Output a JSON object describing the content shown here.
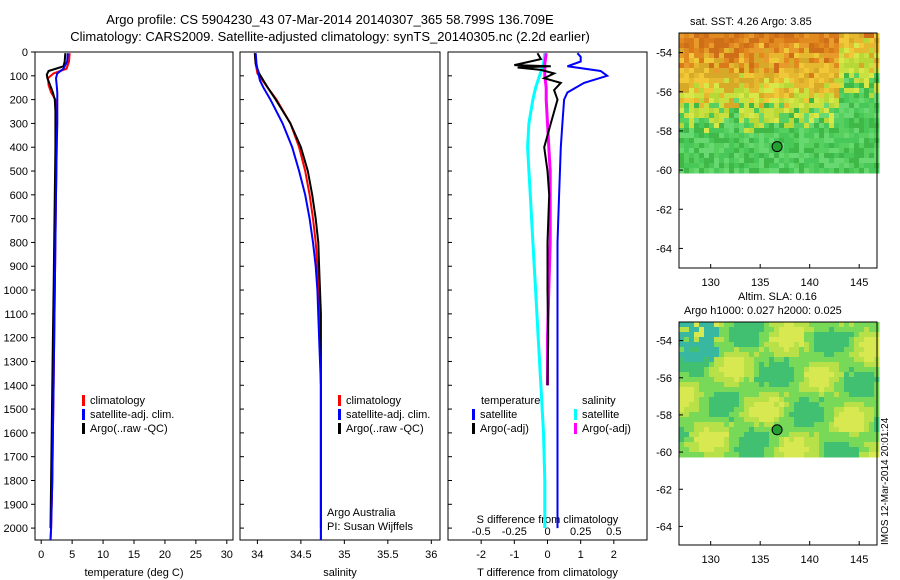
{
  "title_line1": "Argo profile: CS 5904230_43 07-Mar-2014 20140307_365 58.799S 136.709E",
  "title_line2": "Climatology: CARS2009. Satellite-adjusted climatology: synTS_20140305.nc (2.2d earlier)",
  "map1_title": "sat. SST: 4.26 Argo: 3.85",
  "map2_title_line1": "Altim. SLA: 0.16",
  "map2_title_line2": "Argo h1000: 0.027 h2000: 0.025",
  "side_label": "IMOS 12-Mar-2014 20:01:24",
  "chart_data": [
    {
      "type": "line",
      "panel": "temperature",
      "xlabel": "temperature (deg C)",
      "xlim": [
        -1,
        31
      ],
      "xticks": [
        0,
        5,
        10,
        15,
        20,
        25,
        30
      ],
      "ylim": [
        2050,
        0
      ],
      "yticks": [
        0,
        100,
        200,
        300,
        400,
        500,
        600,
        700,
        800,
        900,
        1000,
        1100,
        1200,
        1300,
        1400,
        1500,
        1600,
        1700,
        1800,
        1900,
        2000
      ],
      "legend": [
        "climatology",
        "satellite-adj. clim.",
        "Argo(..raw -QC)"
      ],
      "colors": {
        "climatology": "#ff0000",
        "satellite": "#0000ff",
        "argo": "#000000"
      },
      "series": [
        {
          "name": "climatology",
          "color": "#ff0000",
          "depth": [
            5,
            40,
            70,
            90,
            110,
            140,
            170,
            200,
            300,
            400,
            600,
            800,
            1000,
            1200,
            1400,
            1600,
            1800,
            2000,
            2050
          ],
          "values": [
            4.6,
            4.5,
            4.1,
            2.0,
            1.1,
            1.2,
            1.6,
            2.3,
            2.5,
            2.5,
            2.4,
            2.3,
            2.2,
            2.1,
            2.0,
            1.9,
            1.8,
            1.6,
            1.5
          ]
        },
        {
          "name": "satellite-adj. clim.",
          "color": "#0000ff",
          "depth": [
            5,
            40,
            70,
            90,
            110,
            140,
            170,
            200,
            300,
            400,
            600,
            800,
            1000,
            1200,
            1400,
            1600,
            1800,
            2000,
            2050
          ],
          "values": [
            4.3,
            4.2,
            3.6,
            2.6,
            2.4,
            2.5,
            2.6,
            2.6,
            2.6,
            2.5,
            2.4,
            2.3,
            2.2,
            2.1,
            2.0,
            1.9,
            1.8,
            1.6,
            1.5
          ]
        },
        {
          "name": "Argo(..raw -QC)",
          "color": "#000000",
          "depth": [
            5,
            40,
            60,
            80,
            95,
            110,
            130,
            150,
            170,
            200,
            250,
            300,
            400,
            600,
            800,
            1000,
            1200,
            1400,
            1600,
            1800,
            2000
          ],
          "values": [
            3.9,
            3.8,
            3.6,
            1.2,
            0.9,
            1.0,
            1.3,
            1.6,
            1.9,
            2.2,
            2.3,
            2.3,
            2.3,
            2.2,
            2.1,
            2.0,
            1.9,
            1.8,
            1.7,
            1.6,
            1.5
          ]
        }
      ]
    },
    {
      "type": "line",
      "panel": "salinity",
      "xlabel": "salinity",
      "xlim": [
        33.8,
        36.1
      ],
      "xticks": [
        34,
        34.5,
        35,
        35.5,
        36
      ],
      "ylim": [
        2050,
        0
      ],
      "legend": [
        "climatology",
        "satellite-adj. clim.",
        "Argo(..raw -QC)"
      ],
      "annotation": [
        "Argo Australia",
        "PI: Susan Wijffels"
      ],
      "series": [
        {
          "name": "climatology",
          "color": "#ff0000",
          "depth": [
            5,
            50,
            90,
            120,
            150,
            200,
            300,
            400,
            500,
            600,
            700,
            800,
            900,
            1000,
            1200,
            1400,
            1600,
            1800,
            2000,
            2050
          ],
          "values": [
            33.97,
            33.98,
            34.0,
            34.06,
            34.12,
            34.22,
            34.38,
            34.48,
            34.55,
            34.6,
            34.64,
            34.67,
            34.69,
            34.7,
            34.72,
            34.73,
            34.73,
            34.73,
            34.73,
            34.73
          ]
        },
        {
          "name": "satellite-adj. clim.",
          "color": "#0000ff",
          "depth": [
            5,
            50,
            90,
            120,
            150,
            200,
            300,
            400,
            500,
            600,
            700,
            800,
            900,
            1000,
            1200,
            1400,
            1600,
            1800,
            2000,
            2050
          ],
          "values": [
            33.98,
            33.99,
            34.01,
            34.03,
            34.07,
            34.15,
            34.29,
            34.4,
            34.48,
            34.55,
            34.6,
            34.64,
            34.67,
            34.69,
            34.71,
            34.73,
            34.73,
            34.73,
            34.73,
            34.73
          ]
        },
        {
          "name": "Argo(..raw -QC)",
          "color": "#000000",
          "depth": [
            5,
            50,
            90,
            120,
            150,
            200,
            300,
            400,
            500,
            600,
            700,
            800,
            900,
            1000,
            1100,
            1200,
            1400,
            1600,
            1800,
            2000
          ],
          "values": [
            33.97,
            33.98,
            34.02,
            34.07,
            34.12,
            34.21,
            34.38,
            34.5,
            34.58,
            34.63,
            34.67,
            34.7,
            34.71,
            34.72,
            34.73,
            34.73,
            34.73,
            34.73,
            34.73,
            34.73
          ]
        }
      ]
    },
    {
      "type": "line",
      "panel": "difference",
      "title_bottom": "S difference from climatology",
      "xlabel": "T difference from climatology",
      "xlim_T": [
        -3,
        3
      ],
      "xticks_T": [
        -2,
        -1,
        0,
        1,
        2
      ],
      "xticks_S": [
        -0.5,
        -0.25,
        0,
        0.25,
        0.5
      ],
      "ylim": [
        2050,
        0
      ],
      "legend_header": [
        "temperature",
        "salinity"
      ],
      "legend": [
        "satellite",
        "Argo(-adj)",
        "satellite",
        "Argo(-adj)"
      ],
      "series": [
        {
          "name": "temperature satellite",
          "color": "#0000ff",
          "depth": [
            5,
            20,
            40,
            60,
            80,
            100,
            130,
            170,
            200,
            300,
            400,
            600,
            800,
            1000,
            1400,
            1800,
            2000
          ],
          "values": [
            0.9,
            1.0,
            1.0,
            0.6,
            1.6,
            1.8,
            1.1,
            0.6,
            0.5,
            0.45,
            0.4,
            0.35,
            0.3,
            0.3,
            0.3,
            0.3,
            0.3
          ]
        },
        {
          "name": "temperature Argo(-adj)",
          "color": "#000000",
          "depth": [
            5,
            30,
            55,
            60,
            65,
            75,
            90,
            110,
            130,
            160,
            200,
            300,
            400,
            500,
            600,
            800,
            1000,
            1200,
            1400
          ],
          "values": [
            -0.3,
            -0.2,
            -1.0,
            0.1,
            -0.9,
            -0.2,
            0.2,
            -0.1,
            0.4,
            0.2,
            0.3,
            0.1,
            -0.1,
            0.0,
            0.05,
            0.0,
            0.0,
            0.02,
            0.0
          ]
        },
        {
          "name": "salinity satellite",
          "color": "#00ffff",
          "depth": [
            5,
            50,
            100,
            150,
            200,
            300,
            400,
            500,
            600,
            800,
            1000,
            1200,
            1400,
            1600,
            1800,
            2000
          ],
          "values": [
            -0.02,
            -0.03,
            -0.06,
            -0.09,
            -0.11,
            -0.14,
            -0.15,
            -0.14,
            -0.13,
            -0.11,
            -0.09,
            -0.07,
            -0.05,
            -0.03,
            -0.02,
            -0.02
          ]
        },
        {
          "name": "salinity Argo(-adj)",
          "color": "#ff00ff",
          "depth": [
            5,
            50,
            100,
            150,
            200,
            300,
            400,
            500,
            600,
            800,
            1000,
            1200,
            1400
          ],
          "values": [
            -0.01,
            -0.02,
            -0.02,
            -0.01,
            -0.01,
            0.0,
            0.01,
            0.02,
            0.02,
            0.02,
            0.01,
            0.0,
            0.0
          ]
        }
      ]
    },
    {
      "type": "heatmap",
      "panel": "sst_map",
      "xticks": [
        130,
        135,
        140,
        145
      ],
      "yticks": [
        -54,
        -56,
        -58,
        -60,
        -62,
        -64
      ],
      "xlim": [
        126.8,
        146.8
      ],
      "ylim": [
        -65,
        -53
      ],
      "data_extent_lat": [
        -60,
        -53
      ],
      "argo_position": {
        "lon": 136.709,
        "lat": -58.799
      }
    },
    {
      "type": "heatmap",
      "panel": "sla_map",
      "xticks": [
        130,
        135,
        140,
        145
      ],
      "yticks": [
        -54,
        -56,
        -58,
        -60,
        -62,
        -64
      ],
      "xlim": [
        126.8,
        146.8
      ],
      "ylim": [
        -65,
        -53
      ],
      "data_extent_lat": [
        -60,
        -53
      ],
      "argo_position": {
        "lon": 136.709,
        "lat": -58.799
      }
    }
  ]
}
